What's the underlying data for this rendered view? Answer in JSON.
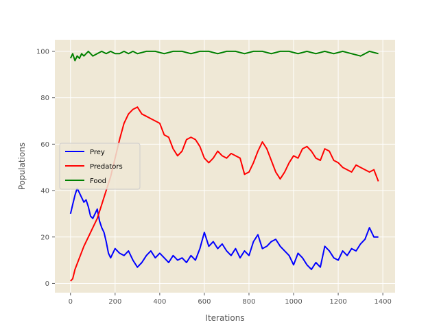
{
  "chart_data": {
    "type": "line",
    "title": "",
    "xlabel": "Iterations",
    "ylabel": "Populations",
    "xlim": [
      -70,
      1455
    ],
    "ylim": [
      -4,
      105
    ],
    "xticks": [
      0,
      200,
      400,
      600,
      800,
      1000,
      1200,
      1400
    ],
    "yticks": [
      0,
      20,
      40,
      60,
      80,
      100
    ],
    "grid": true,
    "background": "#efe8d6",
    "legend_position": "center-left",
    "series": [
      {
        "name": "Prey",
        "color": "#0000ff",
        "x": [
          0,
          10,
          20,
          30,
          40,
          50,
          60,
          70,
          80,
          90,
          100,
          110,
          120,
          130,
          140,
          150,
          160,
          170,
          180,
          200,
          220,
          240,
          260,
          280,
          300,
          320,
          340,
          360,
          380,
          400,
          420,
          440,
          460,
          480,
          500,
          520,
          540,
          560,
          580,
          600,
          620,
          640,
          660,
          680,
          700,
          720,
          740,
          760,
          780,
          800,
          820,
          840,
          860,
          880,
          900,
          920,
          940,
          960,
          980,
          1000,
          1020,
          1040,
          1060,
          1080,
          1100,
          1120,
          1140,
          1160,
          1180,
          1200,
          1220,
          1240,
          1260,
          1280,
          1300,
          1320,
          1340,
          1360,
          1380
        ],
        "y": [
          30,
          34,
          38,
          41,
          39,
          37,
          35,
          36,
          33,
          29,
          28,
          30,
          32,
          27,
          24,
          22,
          18,
          13,
          11,
          15,
          13,
          12,
          14,
          10,
          7,
          9,
          12,
          14,
          11,
          13,
          11,
          9,
          12,
          10,
          11,
          9,
          12,
          10,
          15,
          22,
          16,
          18,
          15,
          17,
          14,
          12,
          15,
          11,
          14,
          12,
          18,
          21,
          15,
          16,
          18,
          19,
          16,
          14,
          12,
          8,
          13,
          11,
          8,
          6,
          9,
          7,
          16,
          14,
          11,
          10,
          14,
          12,
          15,
          14,
          17,
          19,
          24,
          20,
          20
        ]
      },
      {
        "name": "Predators",
        "color": "#ff0000",
        "x": [
          0,
          10,
          20,
          40,
          60,
          80,
          100,
          120,
          140,
          160,
          180,
          200,
          220,
          240,
          260,
          280,
          300,
          320,
          340,
          360,
          380,
          400,
          420,
          440,
          460,
          480,
          500,
          520,
          540,
          560,
          580,
          600,
          620,
          640,
          660,
          680,
          700,
          720,
          740,
          760,
          780,
          800,
          820,
          840,
          860,
          880,
          900,
          920,
          940,
          960,
          980,
          1000,
          1020,
          1040,
          1060,
          1080,
          1100,
          1120,
          1140,
          1160,
          1180,
          1200,
          1220,
          1240,
          1260,
          1280,
          1300,
          1320,
          1340,
          1360,
          1380
        ],
        "y": [
          1,
          2,
          6,
          11,
          16,
          20,
          24,
          28,
          34,
          40,
          46,
          54,
          62,
          69,
          73,
          75,
          76,
          73,
          72,
          71,
          70,
          69,
          64,
          63,
          58,
          55,
          57,
          62,
          63,
          62,
          59,
          54,
          52,
          54,
          57,
          55,
          54,
          56,
          55,
          54,
          47,
          48,
          52,
          57,
          61,
          58,
          53,
          48,
          45,
          48,
          52,
          55,
          54,
          58,
          59,
          57,
          54,
          53,
          58,
          57,
          53,
          52,
          50,
          49,
          48,
          51,
          50,
          49,
          48,
          49,
          44
        ]
      },
      {
        "name": "Food",
        "color": "#008000",
        "x": [
          0,
          10,
          20,
          30,
          40,
          50,
          60,
          70,
          80,
          100,
          120,
          140,
          160,
          180,
          200,
          220,
          240,
          260,
          280,
          300,
          340,
          380,
          420,
          460,
          500,
          540,
          580,
          620,
          660,
          700,
          740,
          780,
          820,
          860,
          900,
          940,
          980,
          1020,
          1060,
          1100,
          1140,
          1180,
          1220,
          1260,
          1300,
          1340,
          1380
        ],
        "y": [
          97,
          99,
          96,
          98,
          97,
          99,
          98,
          99,
          100,
          98,
          99,
          100,
          99,
          100,
          99,
          99,
          100,
          99,
          100,
          99,
          100,
          100,
          99,
          100,
          100,
          99,
          100,
          100,
          99,
          100,
          100,
          99,
          100,
          100,
          99,
          100,
          100,
          99,
          100,
          99,
          100,
          99,
          100,
          99,
          98,
          100,
          99
        ]
      }
    ]
  }
}
